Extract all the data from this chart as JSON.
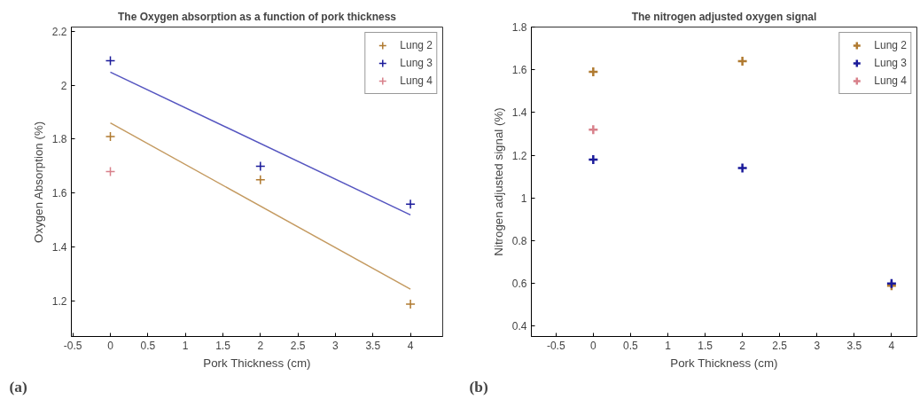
{
  "chart_data": [
    {
      "type": "scatter",
      "title": "The Oxygen absorption as a function of pork thickness",
      "xlabel": "Pork Thickness (cm)",
      "ylabel": "Oxygen Absorption (%)",
      "xlim": [
        -0.52,
        4.43
      ],
      "ylim": [
        1.07,
        2.215
      ],
      "xticks": [
        -0.5,
        0,
        0.5,
        1,
        1.5,
        2,
        2.5,
        3,
        3.5,
        4
      ],
      "yticks": [
        1.2,
        1.4,
        1.6,
        1.8,
        2,
        2.2
      ],
      "grid": false,
      "legend": "top right",
      "marker": "cross",
      "annotations": [
        "(a)"
      ],
      "series": [
        {
          "name": "Lung 2",
          "color": "#b07a30",
          "x": [
            0,
            2,
            4
          ],
          "values": [
            1.81,
            1.65,
            1.19
          ]
        },
        {
          "name": "Lung 3",
          "color": "#1a1a9a",
          "x": [
            0,
            2,
            4
          ],
          "values": [
            2.09,
            1.7,
            1.56
          ]
        },
        {
          "name": "Lung 4",
          "color": "#d8808a",
          "x": [
            0
          ],
          "values": [
            1.68
          ]
        },
        {
          "type": "line",
          "marker": "none",
          "color": "#5555c0",
          "x": [
            0,
            4
          ],
          "values": [
            2.048,
            1.52
          ]
        },
        {
          "type": "line",
          "marker": "none",
          "color": "#c49a60",
          "x": [
            0,
            4
          ],
          "values": [
            1.86,
            1.245
          ]
        }
      ]
    },
    {
      "type": "scatter",
      "title": "The nitrogen adjusted oxygen signal",
      "xlabel": "Pork Thickness (cm)",
      "ylabel": "Nitrogen adjusted signal (%)",
      "xlim": [
        -0.83,
        4.34
      ],
      "ylim": [
        0.352,
        1.8
      ],
      "xticks": [
        -0.5,
        0,
        0.5,
        1,
        1.5,
        2,
        2.5,
        3,
        3.5,
        4
      ],
      "yticks": [
        0.4,
        0.6,
        0.8,
        1,
        1.2,
        1.4,
        1.6,
        1.8
      ],
      "grid": false,
      "legend": "top right",
      "marker": "cross",
      "annotations": [
        "(b)"
      ],
      "series": [
        {
          "name": "Lung 2",
          "color": "#b07a30",
          "x": [
            0,
            2,
            4
          ],
          "values": [
            1.59,
            1.64,
            0.59
          ]
        },
        {
          "name": "Lung 3",
          "color": "#1a1a9a",
          "x": [
            0,
            2,
            4
          ],
          "values": [
            1.18,
            1.14,
            0.6
          ]
        },
        {
          "name": "Lung 4",
          "color": "#d8808a",
          "x": [
            0
          ],
          "values": [
            1.32
          ]
        }
      ]
    }
  ]
}
